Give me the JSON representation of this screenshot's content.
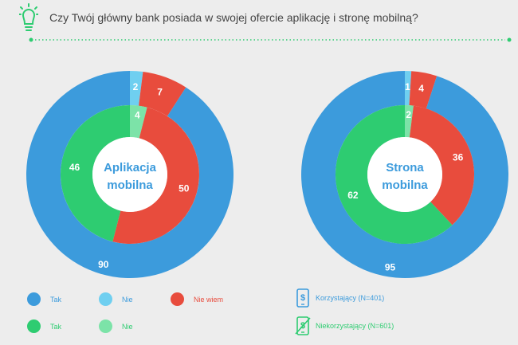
{
  "question": "Czy Twój główny bank posiada w swojej ofercie aplikację i stronę mobilną?",
  "colors": {
    "blue": "#3c9bdc",
    "light_blue": "#6fcff0",
    "red": "#e84c3d",
    "green": "#2ecc71",
    "light_green": "#7ce3a8",
    "bulb": "#2ecc71",
    "text": "#444444"
  },
  "chart_data": [
    {
      "type": "pie",
      "title": "Aplikacja mobilna",
      "title_lines": [
        "Aplikacja",
        "mobilna"
      ],
      "outer_ring": {
        "group": "Korzystający (N=401)",
        "slices": [
          {
            "label": "Nie",
            "value": 2,
            "color": "#6fcff0"
          },
          {
            "label": "Nie wiem",
            "value": 7,
            "color": "#e84c3d"
          },
          {
            "label": "Tak",
            "value": 90,
            "color": "#3c9bdc"
          }
        ]
      },
      "inner_ring": {
        "group": "Niekorzystający (N=601)",
        "slices": [
          {
            "label": "Nie",
            "value": 4,
            "color": "#7ce3a8"
          },
          {
            "label": "Nie wiem",
            "value": 50,
            "color": "#e84c3d"
          },
          {
            "label": "Tak",
            "value": 46,
            "color": "#2ecc71"
          }
        ]
      }
    },
    {
      "type": "pie",
      "title": "Strona mobilna",
      "title_lines": [
        "Strona",
        "mobilna"
      ],
      "outer_ring": {
        "group": "Korzystający (N=401)",
        "slices": [
          {
            "label": "Nie",
            "value": 1,
            "color": "#6fcff0"
          },
          {
            "label": "Nie wiem",
            "value": 4,
            "color": "#e84c3d"
          },
          {
            "label": "Tak",
            "value": 95,
            "color": "#3c9bdc"
          }
        ]
      },
      "inner_ring": {
        "group": "Niekorzystający (N=601)",
        "slices": [
          {
            "label": "Nie",
            "value": 2,
            "color": "#7ce3a8"
          },
          {
            "label": "Nie wiem",
            "value": 36,
            "color": "#e84c3d"
          },
          {
            "label": "Tak",
            "value": 62,
            "color": "#2ecc71"
          }
        ]
      }
    }
  ],
  "legend": {
    "items": [
      {
        "label": "Tak",
        "color": "#3c9bdc"
      },
      {
        "label": "Nie",
        "color": "#6fcff0"
      },
      {
        "label": "Nie wiem",
        "color": "#e84c3d"
      },
      {
        "label": "Tak",
        "color": "#2ecc71"
      },
      {
        "label": "Nie",
        "color": "#7ce3a8"
      }
    ],
    "groups": [
      {
        "label": "Korzystający (N=401)",
        "color": "#3c9bdc",
        "icon": "phone-dollar-icon"
      },
      {
        "label": "Niekorzystający (N=601)",
        "color": "#2ecc71",
        "icon": "phone-dollar-crossed-icon"
      }
    ]
  }
}
